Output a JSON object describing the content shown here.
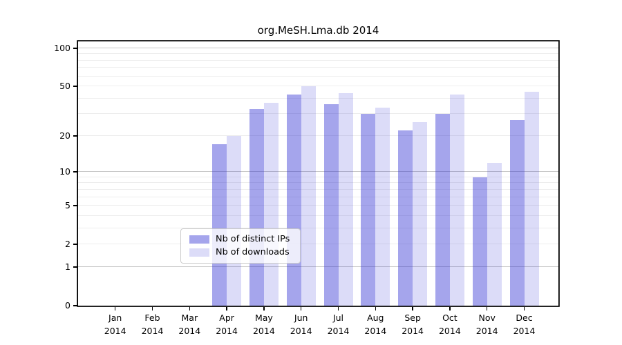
{
  "chart_data": {
    "type": "bar",
    "title": "org.MeSH.Lma.db 2014",
    "categories": [
      "Jan",
      "Feb",
      "Mar",
      "Apr",
      "May",
      "Jun",
      "Jul",
      "Aug",
      "Sep",
      "Oct",
      "Nov",
      "Dec"
    ],
    "x_tick_label_line2": "2014",
    "series": [
      {
        "name": "Nb of distinct IPs",
        "values": [
          0,
          0,
          0,
          17,
          33,
          43,
          36,
          30,
          22,
          30,
          9,
          27
        ],
        "fill": "rgba(40,40,210,0.42)",
        "legend_swatch": "#a5a5ec"
      },
      {
        "name": "Nb of downloads",
        "values": [
          0,
          0,
          0,
          20,
          37,
          50,
          44,
          34,
          26,
          43,
          12,
          45
        ],
        "fill": "rgba(40,40,210,0.16)",
        "legend_swatch": "#dcdcf8"
      }
    ],
    "yscale": "log1p",
    "ylim": [
      0,
      113
    ],
    "y_ticks": [
      0,
      1,
      2,
      5,
      10,
      20,
      50,
      100
    ],
    "y_major_gridlines": [
      1,
      10,
      100
    ],
    "y_minor_gridlines": [
      2,
      3,
      4,
      5,
      6,
      7,
      8,
      9,
      20,
      30,
      40,
      50,
      60,
      70,
      80,
      90
    ],
    "grid": "horizontal",
    "legend_position": "lower center (inside plot)"
  },
  "style": {
    "major_grid_color": "#c6c6c6",
    "minor_grid_color": "#ededed",
    "axis_color": "#000000",
    "background": "#ffffff"
  }
}
